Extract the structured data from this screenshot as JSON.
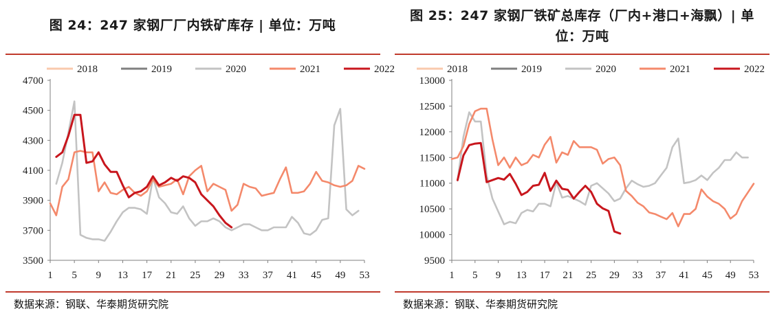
{
  "charts": [
    {
      "title": "图 24：247 家钢厂厂内铁矿库存 | 单位：万吨",
      "source": "数据来源：钢联、华泰期货研究院"
    },
    {
      "title": "图 25：247 家钢厂铁矿总库存（厂内+港口+海飘）| 单位：万吨",
      "source": "数据来源：钢联、华泰期货研究院"
    }
  ],
  "chart_data": [
    {
      "type": "line",
      "title": "图 24：247 家钢厂厂内铁矿库存 | 单位：万吨",
      "xlabel": "",
      "ylabel": "",
      "xlim": [
        1,
        53
      ],
      "xticks": [
        1,
        5,
        9,
        13,
        17,
        21,
        25,
        29,
        33,
        37,
        41,
        45,
        49,
        53
      ],
      "ylim": [
        3500,
        4700
      ],
      "yticks": [
        3500,
        3700,
        3900,
        4100,
        4300,
        4500,
        4700
      ],
      "grid": false,
      "legend": "top",
      "series": [
        {
          "name": "2018",
          "color": "#f9c9ac",
          "x": [],
          "values": []
        },
        {
          "name": "2019",
          "color": "#7f7f7f",
          "x": [],
          "values": []
        },
        {
          "name": "2020",
          "color": "#c3c3c3",
          "x": [
            2,
            3,
            4,
            5,
            6,
            7,
            8,
            9,
            10,
            11,
            12,
            13,
            14,
            15,
            16,
            17,
            18,
            19,
            20,
            21,
            22,
            23,
            24,
            25,
            26,
            27,
            28,
            29,
            30,
            31,
            32,
            33,
            34,
            35,
            36,
            37,
            38,
            39,
            40,
            41,
            42,
            43,
            44,
            45,
            46,
            47,
            48,
            49,
            50,
            51,
            52
          ],
          "values": [
            4010,
            4150,
            4350,
            4560,
            3670,
            3650,
            3640,
            3640,
            3630,
            3690,
            3760,
            3820,
            3850,
            3850,
            3840,
            3810,
            4050,
            3920,
            3880,
            3820,
            3810,
            3860,
            3780,
            3730,
            3760,
            3760,
            3780,
            3760,
            3720,
            3700,
            3720,
            3740,
            3740,
            3720,
            3700,
            3700,
            3720,
            3720,
            3720,
            3790,
            3750,
            3680,
            3670,
            3700,
            3770,
            3780,
            4400,
            4510,
            3840,
            3800,
            3830
          ]
        },
        {
          "name": "2021",
          "color": "#f4896b",
          "x": [
            1,
            2,
            3,
            4,
            5,
            6,
            7,
            8,
            9,
            10,
            11,
            12,
            13,
            14,
            15,
            16,
            17,
            18,
            19,
            20,
            21,
            22,
            23,
            24,
            25,
            26,
            27,
            28,
            29,
            30,
            31,
            32,
            33,
            34,
            35,
            36,
            37,
            38,
            39,
            40,
            41,
            42,
            43,
            44,
            45,
            46,
            47,
            48,
            49,
            50,
            51,
            52,
            53
          ],
          "values": [
            3880,
            3800,
            3990,
            4040,
            4220,
            4230,
            4220,
            4220,
            3960,
            4020,
            3950,
            3940,
            3970,
            3990,
            3950,
            3930,
            3960,
            4040,
            3990,
            4000,
            4010,
            4040,
            3940,
            4060,
            4100,
            4130,
            3960,
            4010,
            3990,
            3970,
            3830,
            3870,
            4010,
            3990,
            3980,
            3930,
            3940,
            3950,
            4040,
            4120,
            3950,
            3950,
            3960,
            4010,
            4090,
            4030,
            4020,
            4000,
            3990,
            4000,
            4030,
            4130,
            4110
          ]
        },
        {
          "name": "2022",
          "color": "#c8161d",
          "x": [
            2,
            3,
            4,
            5,
            6,
            7,
            8,
            9,
            10,
            11,
            12,
            13,
            14,
            15,
            16,
            17,
            18,
            19,
            20,
            21,
            22,
            23,
            24,
            25,
            26,
            27,
            28,
            29,
            30,
            31
          ],
          "values": [
            4190,
            4220,
            4330,
            4470,
            4470,
            4150,
            4160,
            4220,
            4140,
            4090,
            4090,
            4000,
            3920,
            3950,
            3960,
            3990,
            4060,
            4000,
            4020,
            4050,
            4030,
            4060,
            4050,
            4020,
            3940,
            3900,
            3860,
            3800,
            3750,
            3720
          ]
        }
      ]
    },
    {
      "type": "line",
      "title": "图 25：247 家钢厂铁矿总库存（厂内+港口+海飘）| 单位：万吨",
      "xlabel": "",
      "ylabel": "",
      "xlim": [
        1,
        53
      ],
      "xticks": [
        1,
        5,
        9,
        13,
        17,
        21,
        25,
        29,
        33,
        37,
        41,
        45,
        49,
        53
      ],
      "ylim": [
        9500,
        13000
      ],
      "yticks": [
        9500,
        10000,
        10500,
        11000,
        11500,
        12000,
        12500,
        13000
      ],
      "grid": false,
      "legend": "top",
      "series": [
        {
          "name": "2018",
          "color": "#f9c9ac",
          "x": [],
          "values": []
        },
        {
          "name": "2019",
          "color": "#7f7f7f",
          "x": [],
          "values": []
        },
        {
          "name": "2020",
          "color": "#c3c3c3",
          "x": [
            2,
            3,
            4,
            5,
            6,
            7,
            8,
            9,
            10,
            11,
            12,
            13,
            14,
            15,
            16,
            17,
            18,
            19,
            20,
            21,
            22,
            23,
            24,
            25,
            26,
            27,
            28,
            29,
            30,
            31,
            32,
            33,
            34,
            35,
            36,
            37,
            38,
            39,
            40,
            41,
            42,
            43,
            44,
            45,
            46,
            47,
            48,
            49,
            50,
            51,
            52
          ],
          "values": [
            11050,
            11900,
            12380,
            12200,
            12200,
            11150,
            10700,
            10450,
            10200,
            10250,
            10220,
            10420,
            10480,
            10450,
            10600,
            10600,
            10550,
            11020,
            10720,
            10750,
            10700,
            10650,
            10580,
            10950,
            11000,
            10900,
            10800,
            10650,
            10700,
            10900,
            11050,
            10980,
            10930,
            10950,
            11000,
            11150,
            11300,
            11700,
            11870,
            11000,
            11020,
            11060,
            11150,
            11060,
            11200,
            11300,
            11450,
            11450,
            11600,
            11500,
            11500
          ]
        },
        {
          "name": "2021",
          "color": "#f4896b",
          "x": [
            1,
            2,
            3,
            4,
            5,
            6,
            7,
            8,
            9,
            10,
            11,
            12,
            13,
            14,
            15,
            16,
            17,
            18,
            19,
            20,
            21,
            22,
            23,
            24,
            25,
            26,
            27,
            28,
            29,
            30,
            31,
            32,
            33,
            34,
            35,
            36,
            37,
            38,
            39,
            40,
            41,
            42,
            43,
            44,
            45,
            46,
            47,
            48,
            49,
            50,
            51,
            52,
            53
          ],
          "values": [
            11470,
            11500,
            11720,
            12150,
            12400,
            12450,
            12450,
            11850,
            11350,
            11500,
            11300,
            11500,
            11350,
            11400,
            11550,
            11500,
            11750,
            11900,
            11400,
            11600,
            11550,
            11820,
            11700,
            11700,
            11700,
            11650,
            11380,
            11470,
            11500,
            11350,
            10850,
            10750,
            10620,
            10550,
            10430,
            10400,
            10350,
            10300,
            10420,
            10160,
            10400,
            10400,
            10500,
            10880,
            10740,
            10650,
            10600,
            10500,
            10310,
            10400,
            10650,
            10820,
            10990
          ]
        },
        {
          "name": "2022",
          "color": "#c8161d",
          "x": [
            2,
            3,
            4,
            5,
            6,
            7,
            8,
            9,
            10,
            11,
            12,
            13,
            14,
            15,
            16,
            17,
            18,
            19,
            20,
            21,
            22,
            23,
            24,
            25,
            26,
            27,
            28,
            29,
            30
          ],
          "values": [
            11060,
            11540,
            11740,
            11770,
            11780,
            11020,
            11060,
            11100,
            11070,
            11180,
            10990,
            10770,
            10830,
            10950,
            10970,
            11200,
            10850,
            11050,
            10890,
            10870,
            10700,
            10830,
            10950,
            10830,
            10600,
            10510,
            10460,
            10060,
            10020
          ]
        }
      ]
    }
  ]
}
